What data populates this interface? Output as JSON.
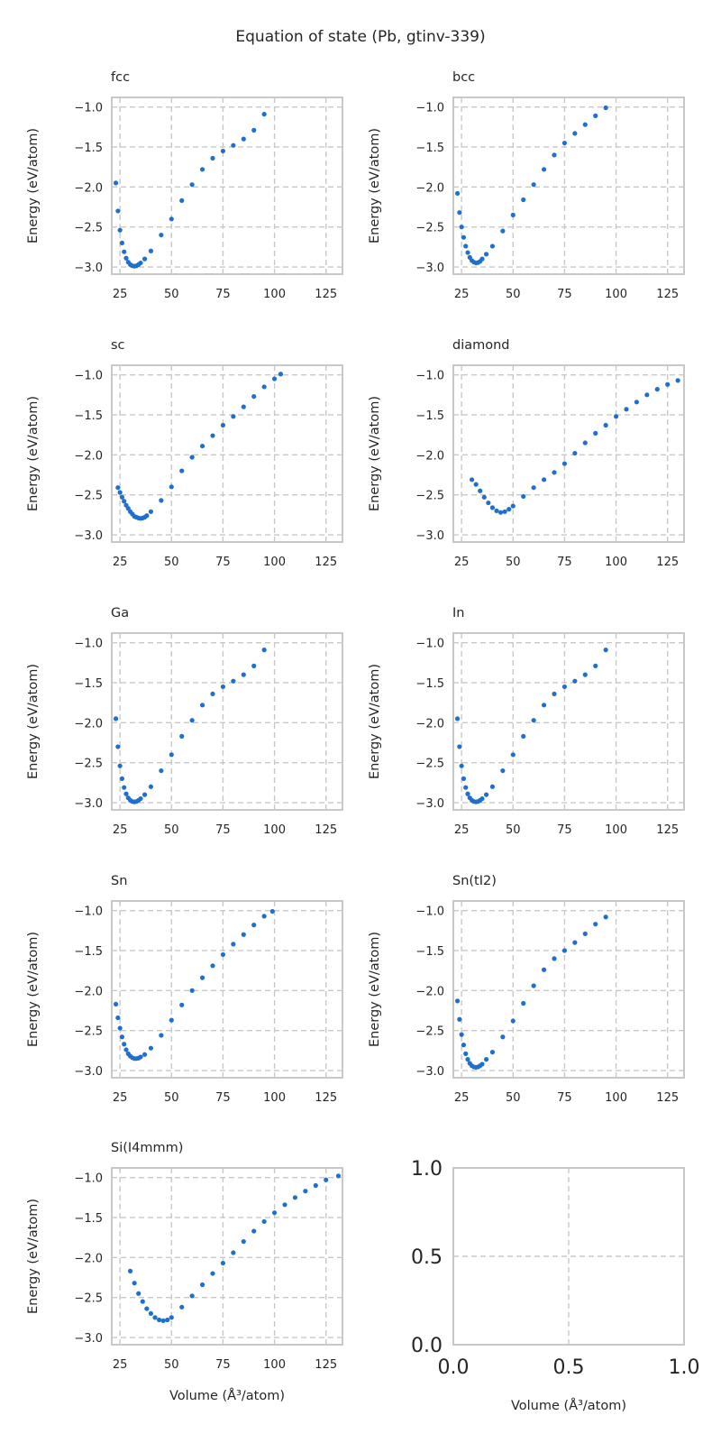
{
  "figure": {
    "suptitle": "Equation of state (Pb, gtinv-339)",
    "ylabel": "Energy (eV/atom)",
    "xlabel": "Volume (Å³/atom)",
    "point_color": "#1f6fcf",
    "grid_color": "#c8c8c8",
    "frame_color": "#c8c8c8"
  },
  "chart_data": [
    {
      "type": "scatter",
      "title": "fcc",
      "xlim": [
        21,
        133
      ],
      "ylim": [
        -3.09,
        -0.88
      ],
      "xticks": [
        25,
        50,
        75,
        100,
        125
      ],
      "yticks": [
        -1.0,
        -1.5,
        -2.0,
        -2.5,
        -3.0
      ],
      "points": [
        [
          23,
          -1.95
        ],
        [
          24,
          -2.3
        ],
        [
          25,
          -2.54
        ],
        [
          26,
          -2.7
        ],
        [
          27,
          -2.81
        ],
        [
          28,
          -2.89
        ],
        [
          29,
          -2.94
        ],
        [
          30,
          -2.97
        ],
        [
          31,
          -2.985
        ],
        [
          32,
          -2.99
        ],
        [
          33,
          -2.985
        ],
        [
          34,
          -2.97
        ],
        [
          35,
          -2.95
        ],
        [
          37,
          -2.9
        ],
        [
          40,
          -2.8
        ],
        [
          45,
          -2.6
        ],
        [
          50,
          -2.4
        ],
        [
          55,
          -2.17
        ],
        [
          60,
          -1.97
        ],
        [
          65,
          -1.78
        ],
        [
          70,
          -1.64
        ],
        [
          75,
          -1.55
        ],
        [
          80,
          -1.48
        ],
        [
          85,
          -1.4
        ],
        [
          90,
          -1.29
        ],
        [
          95,
          -1.09
        ]
      ]
    },
    {
      "type": "scatter",
      "title": "bcc",
      "xlim": [
        21,
        133
      ],
      "ylim": [
        -3.09,
        -0.88
      ],
      "xticks": [
        25,
        50,
        75,
        100,
        125
      ],
      "yticks": [
        -1.0,
        -1.5,
        -2.0,
        -2.5,
        -3.0
      ],
      "points": [
        [
          23,
          -2.08
        ],
        [
          24,
          -2.32
        ],
        [
          25,
          -2.5
        ],
        [
          26,
          -2.63
        ],
        [
          27,
          -2.74
        ],
        [
          28,
          -2.82
        ],
        [
          29,
          -2.88
        ],
        [
          30,
          -2.92
        ],
        [
          31,
          -2.94
        ],
        [
          32,
          -2.95
        ],
        [
          33,
          -2.945
        ],
        [
          34,
          -2.93
        ],
        [
          35,
          -2.9
        ],
        [
          37,
          -2.84
        ],
        [
          40,
          -2.74
        ],
        [
          45,
          -2.55
        ],
        [
          50,
          -2.35
        ],
        [
          55,
          -2.16
        ],
        [
          60,
          -1.97
        ],
        [
          65,
          -1.78
        ],
        [
          70,
          -1.6
        ],
        [
          75,
          -1.45
        ],
        [
          80,
          -1.33
        ],
        [
          85,
          -1.22
        ],
        [
          90,
          -1.11
        ],
        [
          95,
          -1.01
        ]
      ]
    },
    {
      "type": "scatter",
      "title": "sc",
      "xlim": [
        21,
        133
      ],
      "ylim": [
        -3.09,
        -0.88
      ],
      "xticks": [
        25,
        50,
        75,
        100,
        125
      ],
      "yticks": [
        -1.0,
        -1.5,
        -2.0,
        -2.5,
        -3.0
      ],
      "points": [
        [
          24,
          -2.41
        ],
        [
          25,
          -2.47
        ],
        [
          26,
          -2.53
        ],
        [
          27,
          -2.58
        ],
        [
          28,
          -2.63
        ],
        [
          29,
          -2.67
        ],
        [
          30,
          -2.71
        ],
        [
          31,
          -2.74
        ],
        [
          32,
          -2.77
        ],
        [
          33,
          -2.78
        ],
        [
          34,
          -2.79
        ],
        [
          35,
          -2.795
        ],
        [
          36,
          -2.79
        ],
        [
          37,
          -2.78
        ],
        [
          38,
          -2.76
        ],
        [
          40,
          -2.71
        ],
        [
          45,
          -2.57
        ],
        [
          50,
          -2.4
        ],
        [
          55,
          -2.2
        ],
        [
          60,
          -2.03
        ],
        [
          65,
          -1.89
        ],
        [
          70,
          -1.76
        ],
        [
          75,
          -1.63
        ],
        [
          80,
          -1.52
        ],
        [
          85,
          -1.4
        ],
        [
          90,
          -1.27
        ],
        [
          95,
          -1.15
        ],
        [
          100,
          -1.05
        ],
        [
          103,
          -0.99
        ]
      ]
    },
    {
      "type": "scatter",
      "title": "diamond",
      "xlim": [
        21,
        133
      ],
      "ylim": [
        -3.09,
        -0.88
      ],
      "xticks": [
        25,
        50,
        75,
        100,
        125
      ],
      "yticks": [
        -1.0,
        -1.5,
        -2.0,
        -2.5,
        -3.0
      ],
      "points": [
        [
          30,
          -2.31
        ],
        [
          32,
          -2.37
        ],
        [
          34,
          -2.45
        ],
        [
          36,
          -2.53
        ],
        [
          38,
          -2.6
        ],
        [
          40,
          -2.66
        ],
        [
          42,
          -2.7
        ],
        [
          44,
          -2.72
        ],
        [
          46,
          -2.71
        ],
        [
          48,
          -2.68
        ],
        [
          50,
          -2.64
        ],
        [
          55,
          -2.52
        ],
        [
          60,
          -2.41
        ],
        [
          65,
          -2.31
        ],
        [
          70,
          -2.22
        ],
        [
          75,
          -2.11
        ],
        [
          80,
          -1.98
        ],
        [
          85,
          -1.85
        ],
        [
          90,
          -1.73
        ],
        [
          95,
          -1.63
        ],
        [
          100,
          -1.52
        ],
        [
          105,
          -1.43
        ],
        [
          110,
          -1.34
        ],
        [
          115,
          -1.25
        ],
        [
          120,
          -1.18
        ],
        [
          125,
          -1.12
        ],
        [
          130,
          -1.07
        ]
      ]
    },
    {
      "type": "scatter",
      "title": "Ga",
      "xlim": [
        21,
        133
      ],
      "ylim": [
        -3.09,
        -0.88
      ],
      "xticks": [
        25,
        50,
        75,
        100,
        125
      ],
      "yticks": [
        -1.0,
        -1.5,
        -2.0,
        -2.5,
        -3.0
      ],
      "points": [
        [
          23,
          -1.95
        ],
        [
          24,
          -2.3
        ],
        [
          25,
          -2.54
        ],
        [
          26,
          -2.7
        ],
        [
          27,
          -2.81
        ],
        [
          28,
          -2.89
        ],
        [
          29,
          -2.94
        ],
        [
          30,
          -2.97
        ],
        [
          31,
          -2.985
        ],
        [
          32,
          -2.99
        ],
        [
          33,
          -2.985
        ],
        [
          34,
          -2.97
        ],
        [
          35,
          -2.95
        ],
        [
          37,
          -2.9
        ],
        [
          40,
          -2.8
        ],
        [
          45,
          -2.6
        ],
        [
          50,
          -2.4
        ],
        [
          55,
          -2.17
        ],
        [
          60,
          -1.97
        ],
        [
          65,
          -1.78
        ],
        [
          70,
          -1.64
        ],
        [
          75,
          -1.55
        ],
        [
          80,
          -1.48
        ],
        [
          85,
          -1.4
        ],
        [
          90,
          -1.29
        ],
        [
          95,
          -1.09
        ]
      ]
    },
    {
      "type": "scatter",
      "title": "In",
      "xlim": [
        21,
        133
      ],
      "ylim": [
        -3.09,
        -0.88
      ],
      "xticks": [
        25,
        50,
        75,
        100,
        125
      ],
      "yticks": [
        -1.0,
        -1.5,
        -2.0,
        -2.5,
        -3.0
      ],
      "points": [
        [
          23,
          -1.95
        ],
        [
          24,
          -2.3
        ],
        [
          25,
          -2.54
        ],
        [
          26,
          -2.7
        ],
        [
          27,
          -2.81
        ],
        [
          28,
          -2.89
        ],
        [
          29,
          -2.94
        ],
        [
          30,
          -2.97
        ],
        [
          31,
          -2.985
        ],
        [
          32,
          -2.99
        ],
        [
          33,
          -2.985
        ],
        [
          34,
          -2.97
        ],
        [
          35,
          -2.95
        ],
        [
          37,
          -2.9
        ],
        [
          40,
          -2.8
        ],
        [
          45,
          -2.6
        ],
        [
          50,
          -2.4
        ],
        [
          55,
          -2.17
        ],
        [
          60,
          -1.97
        ],
        [
          65,
          -1.78
        ],
        [
          70,
          -1.64
        ],
        [
          75,
          -1.55
        ],
        [
          80,
          -1.48
        ],
        [
          85,
          -1.4
        ],
        [
          90,
          -1.29
        ],
        [
          95,
          -1.09
        ]
      ]
    },
    {
      "type": "scatter",
      "title": "Sn",
      "xlim": [
        21,
        133
      ],
      "ylim": [
        -3.09,
        -0.88
      ],
      "xticks": [
        25,
        50,
        75,
        100,
        125
      ],
      "yticks": [
        -1.0,
        -1.5,
        -2.0,
        -2.5,
        -3.0
      ],
      "points": [
        [
          23,
          -2.17
        ],
        [
          24,
          -2.34
        ],
        [
          25,
          -2.47
        ],
        [
          26,
          -2.58
        ],
        [
          27,
          -2.67
        ],
        [
          28,
          -2.74
        ],
        [
          29,
          -2.79
        ],
        [
          30,
          -2.82
        ],
        [
          31,
          -2.84
        ],
        [
          32,
          -2.85
        ],
        [
          33,
          -2.85
        ],
        [
          34,
          -2.845
        ],
        [
          35,
          -2.83
        ],
        [
          37,
          -2.8
        ],
        [
          40,
          -2.72
        ],
        [
          45,
          -2.56
        ],
        [
          50,
          -2.37
        ],
        [
          55,
          -2.18
        ],
        [
          60,
          -2.0
        ],
        [
          65,
          -1.84
        ],
        [
          70,
          -1.69
        ],
        [
          75,
          -1.55
        ],
        [
          80,
          -1.42
        ],
        [
          85,
          -1.3
        ],
        [
          90,
          -1.18
        ],
        [
          95,
          -1.07
        ],
        [
          99,
          -1.01
        ]
      ]
    },
    {
      "type": "scatter",
      "title": "Sn(tI2)",
      "xlim": [
        21,
        133
      ],
      "ylim": [
        -3.09,
        -0.88
      ],
      "xticks": [
        25,
        50,
        75,
        100,
        125
      ],
      "yticks": [
        -1.0,
        -1.5,
        -2.0,
        -2.5,
        -3.0
      ],
      "points": [
        [
          23,
          -2.13
        ],
        [
          24,
          -2.36
        ],
        [
          25,
          -2.55
        ],
        [
          26,
          -2.68
        ],
        [
          27,
          -2.79
        ],
        [
          28,
          -2.86
        ],
        [
          29,
          -2.91
        ],
        [
          30,
          -2.94
        ],
        [
          31,
          -2.955
        ],
        [
          32,
          -2.96
        ],
        [
          33,
          -2.955
        ],
        [
          34,
          -2.94
        ],
        [
          35,
          -2.92
        ],
        [
          37,
          -2.86
        ],
        [
          40,
          -2.77
        ],
        [
          45,
          -2.58
        ],
        [
          50,
          -2.38
        ],
        [
          55,
          -2.16
        ],
        [
          60,
          -1.94
        ],
        [
          65,
          -1.74
        ],
        [
          70,
          -1.6
        ],
        [
          75,
          -1.5
        ],
        [
          80,
          -1.4
        ],
        [
          85,
          -1.29
        ],
        [
          90,
          -1.17
        ],
        [
          95,
          -1.08
        ]
      ]
    },
    {
      "type": "scatter",
      "title": "Si(I4mmm)",
      "xlim": [
        21,
        133
      ],
      "ylim": [
        -3.09,
        -0.88
      ],
      "xticks": [
        25,
        50,
        75,
        100,
        125
      ],
      "yticks": [
        -1.0,
        -1.5,
        -2.0,
        -2.5,
        -3.0
      ],
      "points": [
        [
          30,
          -2.17
        ],
        [
          32,
          -2.32
        ],
        [
          34,
          -2.45
        ],
        [
          36,
          -2.55
        ],
        [
          38,
          -2.64
        ],
        [
          40,
          -2.7
        ],
        [
          42,
          -2.75
        ],
        [
          44,
          -2.78
        ],
        [
          46,
          -2.79
        ],
        [
          48,
          -2.78
        ],
        [
          50,
          -2.75
        ],
        [
          55,
          -2.62
        ],
        [
          60,
          -2.48
        ],
        [
          65,
          -2.34
        ],
        [
          70,
          -2.2
        ],
        [
          75,
          -2.07
        ],
        [
          80,
          -1.94
        ],
        [
          85,
          -1.8
        ],
        [
          90,
          -1.67
        ],
        [
          95,
          -1.55
        ],
        [
          100,
          -1.44
        ],
        [
          105,
          -1.34
        ],
        [
          110,
          -1.25
        ],
        [
          115,
          -1.17
        ],
        [
          120,
          -1.1
        ],
        [
          125,
          -1.03
        ],
        [
          131,
          -0.98
        ]
      ]
    },
    {
      "type": "scatter",
      "title": "",
      "xlim": [
        0.0,
        1.0
      ],
      "ylim": [
        0.0,
        1.0
      ],
      "xticks": [
        0.0,
        0.5,
        1.0
      ],
      "yticks": [
        0.0,
        0.5,
        1.0
      ],
      "tick_labels_x": [
        "0.0",
        "0.5",
        "1.0"
      ],
      "tick_labels_y": [
        "0.0",
        "0.5",
        "1.0"
      ],
      "large_ticks": true,
      "points": []
    }
  ]
}
